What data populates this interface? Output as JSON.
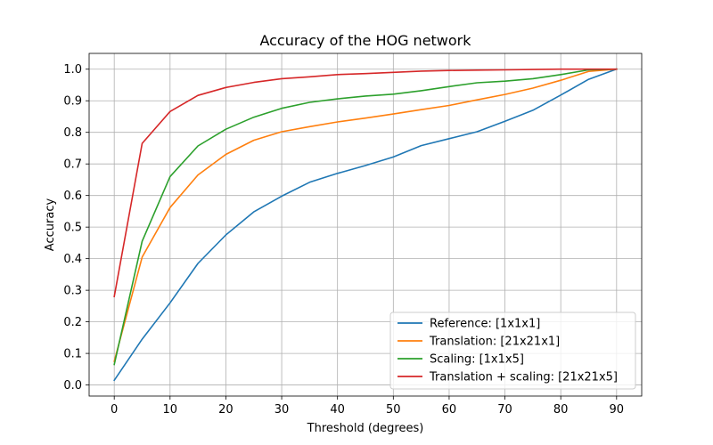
{
  "chart_data": {
    "type": "line",
    "title": "Accuracy of the HOG network",
    "xlabel": "Threshold (degrees)",
    "ylabel": "Accuracy",
    "xlim": [
      -4.5,
      94.5
    ],
    "ylim": [
      -0.035,
      1.05
    ],
    "xticks": [
      0,
      10,
      20,
      30,
      40,
      50,
      60,
      70,
      80,
      90
    ],
    "xtick_labels": [
      "0",
      "10",
      "20",
      "30",
      "40",
      "50",
      "60",
      "70",
      "80",
      "90"
    ],
    "yticks": [
      0.0,
      0.1,
      0.2,
      0.3,
      0.4,
      0.5,
      0.6,
      0.7,
      0.8,
      0.9,
      1.0
    ],
    "ytick_labels": [
      "0.0",
      "0.1",
      "0.2",
      "0.3",
      "0.4",
      "0.5",
      "0.6",
      "0.7",
      "0.8",
      "0.9",
      "1.0"
    ],
    "grid": true,
    "legend_position": "bottom-right",
    "x": [
      0,
      5,
      10,
      15,
      20,
      25,
      30,
      35,
      40,
      45,
      50,
      55,
      60,
      65,
      70,
      75,
      80,
      85,
      90
    ],
    "series": [
      {
        "name": "Reference: [1x1x1]",
        "color": "#1f77b4",
        "values": [
          0.015,
          0.145,
          0.26,
          0.385,
          0.475,
          0.548,
          0.598,
          0.642,
          0.67,
          0.695,
          0.722,
          0.758,
          0.78,
          0.802,
          0.835,
          0.87,
          0.918,
          0.968,
          1.0
        ]
      },
      {
        "name": "Translation: [21x21x1]",
        "color": "#ff7f0e",
        "values": [
          0.075,
          0.405,
          0.562,
          0.665,
          0.73,
          0.775,
          0.802,
          0.818,
          0.833,
          0.845,
          0.858,
          0.872,
          0.885,
          0.903,
          0.92,
          0.94,
          0.965,
          0.993,
          1.0
        ]
      },
      {
        "name": "Scaling: [1x1x5]",
        "color": "#2ca02c",
        "values": [
          0.065,
          0.455,
          0.66,
          0.757,
          0.81,
          0.848,
          0.876,
          0.895,
          0.906,
          0.915,
          0.921,
          0.932,
          0.945,
          0.957,
          0.962,
          0.97,
          0.983,
          0.998,
          1.0
        ]
      },
      {
        "name": "Translation + scaling: [21x21x5]",
        "color": "#d62728",
        "values": [
          0.28,
          0.765,
          0.866,
          0.917,
          0.942,
          0.958,
          0.97,
          0.976,
          0.983,
          0.986,
          0.99,
          0.994,
          0.996,
          0.997,
          0.998,
          0.999,
          1.0,
          1.0,
          1.0
        ]
      }
    ]
  }
}
